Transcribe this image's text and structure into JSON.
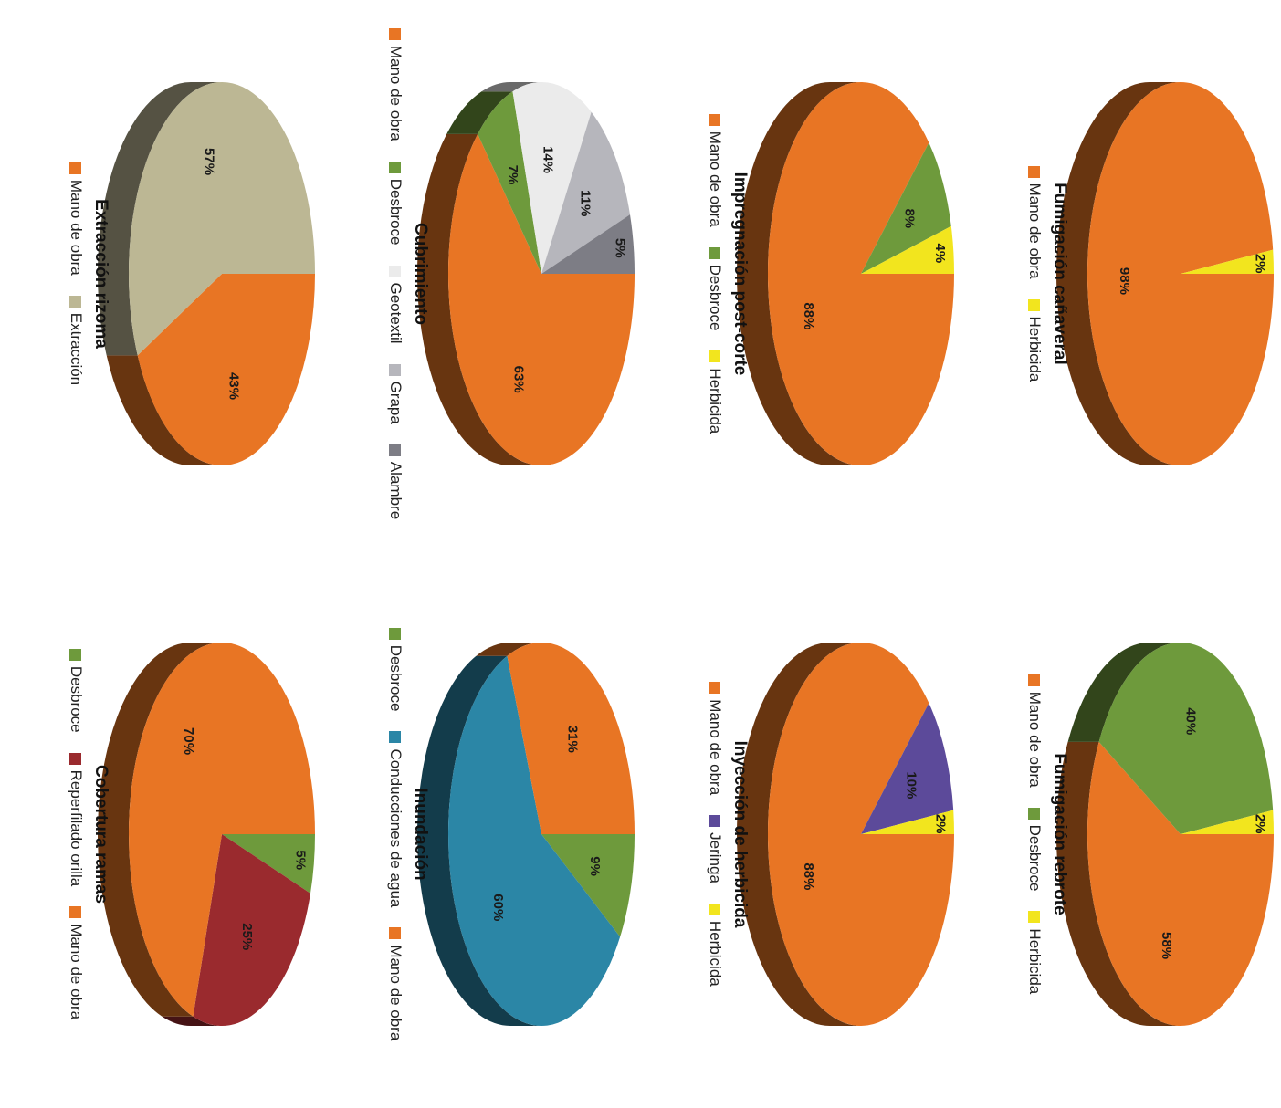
{
  "chart_data": [
    {
      "type": "pie",
      "title": "Fumigación cañaveral",
      "slices": [
        {
          "label": "Mano de obra",
          "value": 98,
          "value_label": "98%",
          "color": "#E87524"
        },
        {
          "label": "Herbicida",
          "value": 2,
          "value_label": "2%",
          "color": "#F2E51E"
        }
      ]
    },
    {
      "type": "pie",
      "title": "Fumigación rebrote",
      "slices": [
        {
          "label": "Mano de obra",
          "value": 58,
          "value_label": "58%",
          "color": "#E87524"
        },
        {
          "label": "Desbroce",
          "value": 40,
          "value_label": "40%",
          "color": "#6E9A3C"
        },
        {
          "label": "Herbicida",
          "value": 2,
          "value_label": "2%",
          "color": "#F2E51E"
        }
      ]
    },
    {
      "type": "pie",
      "title": "Impregnación post-corte",
      "slices": [
        {
          "label": "Mano de obra",
          "value": 88,
          "value_label": "88%",
          "color": "#E87524"
        },
        {
          "label": "Desbroce",
          "value": 8,
          "value_label": "8%",
          "color": "#6E9A3C"
        },
        {
          "label": "Herbicida",
          "value": 4,
          "value_label": "4%",
          "color": "#F2E51E"
        }
      ]
    },
    {
      "type": "pie",
      "title": "Inyección de herbicida",
      "slices": [
        {
          "label": "Mano de obra",
          "value": 88,
          "value_label": "88%",
          "color": "#E87524"
        },
        {
          "label": "Jeringa",
          "value": 10,
          "value_label": "10%",
          "color": "#5C4A9A"
        },
        {
          "label": "Herbicida",
          "value": 2,
          "value_label": "2%",
          "color": "#F2E51E"
        }
      ]
    },
    {
      "type": "pie",
      "title": "Cubrimiento",
      "slices": [
        {
          "label": "Mano de obra",
          "value": 63,
          "value_label": "63%",
          "color": "#E87524"
        },
        {
          "label": "Desbroce",
          "value": 7,
          "value_label": "7%",
          "color": "#6E9A3C"
        },
        {
          "label": "Geotextil",
          "value": 14,
          "value_label": "14%",
          "color": "#EBEBEB"
        },
        {
          "label": "Grapa",
          "value": 11,
          "value_label": "11%",
          "color": "#B6B6BC"
        },
        {
          "label": "Alambre",
          "value": 5,
          "value_label": "5%",
          "color": "#7D7D85"
        }
      ]
    },
    {
      "type": "pie",
      "title": "Inundación",
      "slices": [
        {
          "label": "Desbroce",
          "value": 9,
          "value_label": "9%",
          "color": "#6E9A3C"
        },
        {
          "label": "Conducciones de agua",
          "value": 60,
          "value_label": "60%",
          "color": "#2B86A6"
        },
        {
          "label": "Mano de obra",
          "value": 31,
          "value_label": "31%",
          "color": "#E87524"
        }
      ]
    },
    {
      "type": "pie",
      "title": "Extracción rizoma",
      "slices": [
        {
          "label": "Mano de obra",
          "value": 43,
          "value_label": "43%",
          "color": "#E87524"
        },
        {
          "label": "Extracción",
          "value": 57,
          "value_label": "57%",
          "color": "#BCB794"
        }
      ]
    },
    {
      "type": "pie",
      "title": "Cobertura ramas",
      "slices": [
        {
          "label": "Desbroce",
          "value": 5,
          "value_label": "5%",
          "color": "#6E9A3C"
        },
        {
          "label": "Reperfilado orilla",
          "value": 25,
          "value_label": "25%",
          "color": "#9A2A2E"
        },
        {
          "label": "Mano de obra",
          "value": 70,
          "value_label": "70%",
          "color": "#E87524"
        }
      ]
    }
  ]
}
